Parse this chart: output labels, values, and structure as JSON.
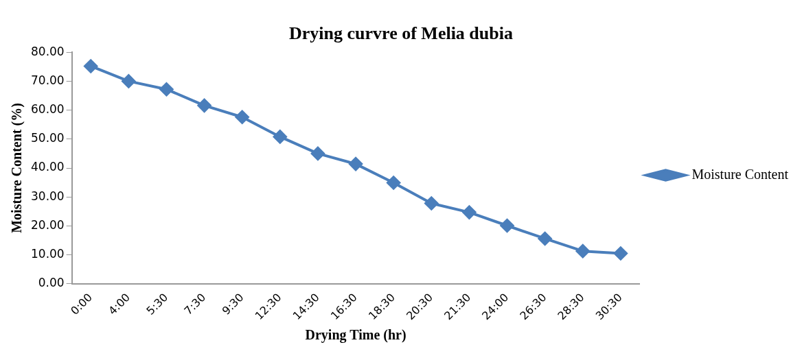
{
  "chart_data": {
    "type": "line",
    "title": "Drying curvre of Melia dubia",
    "xlabel": "Drying Time (hr)",
    "ylabel": "Moisture Content (%)",
    "categories": [
      "0:00",
      "4:00",
      "5:30",
      "7:30",
      "9:30",
      "12:30",
      "14:30",
      "16:30",
      "18:30",
      "20:30",
      "21:30",
      "24:00",
      "26:30",
      "28:30",
      "30:30"
    ],
    "series": [
      {
        "name": "Moisture Content",
        "color": "#4a7ebb",
        "values": [
          75.2,
          70.0,
          67.2,
          61.6,
          57.6,
          50.8,
          45.0,
          41.4,
          34.9,
          27.8,
          24.7,
          20.1,
          15.6,
          11.3,
          10.5
        ]
      }
    ],
    "ylim": [
      0,
      80
    ],
    "yticks": [
      {
        "value": 0,
        "label": "0.00"
      },
      {
        "value": 10,
        "label": "10.00"
      },
      {
        "value": 20,
        "label": "20.00"
      },
      {
        "value": 30,
        "label": "30.00"
      },
      {
        "value": 40,
        "label": "40.00"
      },
      {
        "value": 50,
        "label": "50.00"
      },
      {
        "value": 60,
        "label": "60.00"
      },
      {
        "value": 70,
        "label": "70.00"
      },
      {
        "value": 80,
        "label": "80.00"
      }
    ],
    "grid": false,
    "legend": "right",
    "marker": "diamond",
    "line_style": "solid"
  }
}
